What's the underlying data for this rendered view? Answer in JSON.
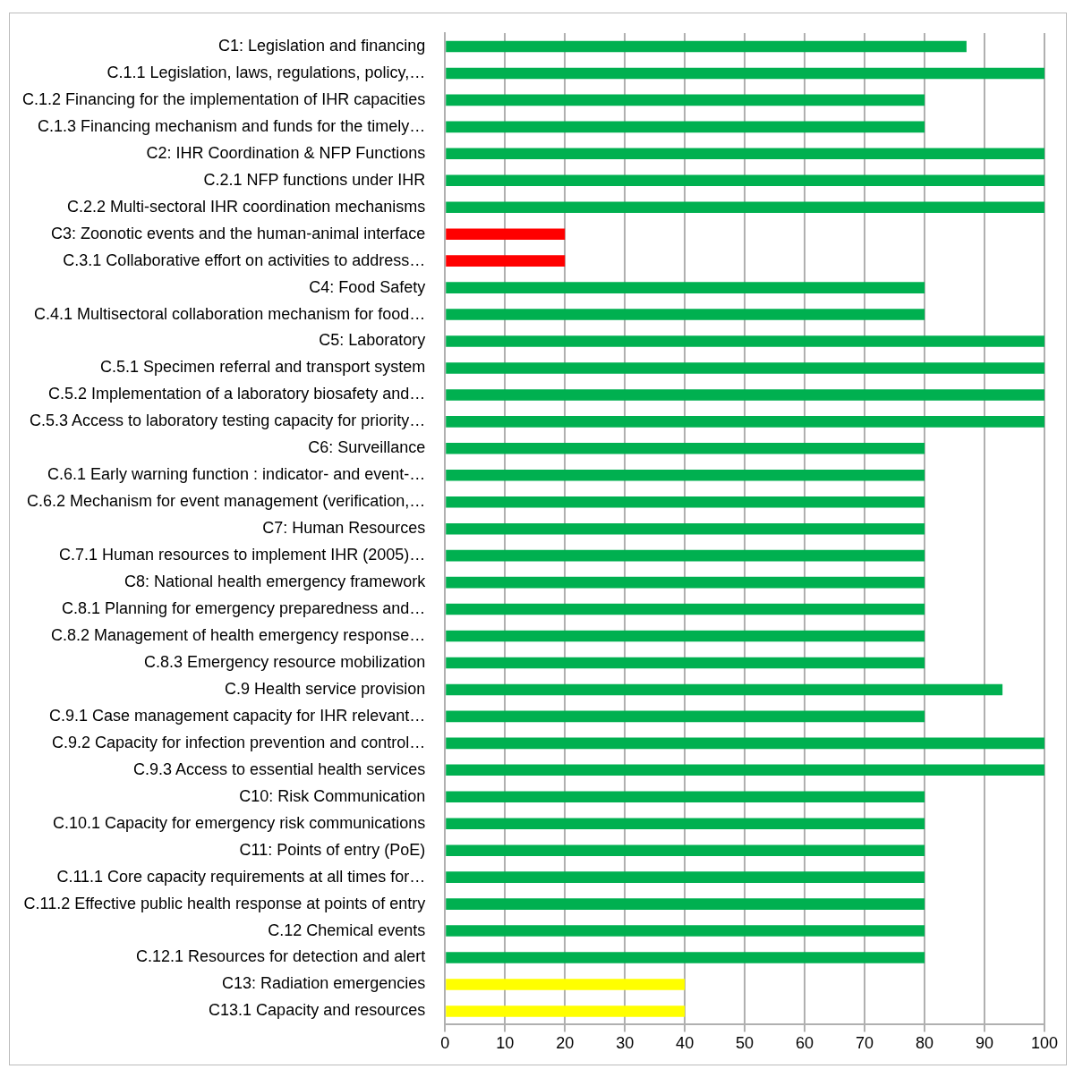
{
  "chart_data": {
    "type": "bar",
    "orientation": "horizontal",
    "categories": [
      "C1: Legislation and financing",
      "C.1.1 Legislation, laws, regulations, policy,…",
      "C.1.2 Financing for the implementation of IHR capacities",
      "C.1.3 Financing mechanism and funds for the timely…",
      "C2: IHR Coordination & NFP Functions",
      "C.2.1 NFP functions under IHR",
      "C.2.2 Multi-sectoral IHR coordination mechanisms",
      "C3: Zoonotic events and the human-animal interface",
      "C.3.1 Collaborative effort on activities to address…",
      "C4: Food Safety",
      "C.4.1 Multisectoral collaboration mechanism for food…",
      "C5: Laboratory",
      "C.5.1 Specimen referral and transport system",
      "C.5.2 Implementation of a laboratory biosafety and…",
      "C.5.3 Access to laboratory testing capacity for priority…",
      "C6: Surveillance",
      "C.6.1 Early warning function : indicator- and event-…",
      "C.6.2 Mechanism for event management (verification,…",
      "C7: Human Resources",
      "C.7.1 Human resources to implement IHR (2005)…",
      "C8: National health emergency framework",
      "C.8.1 Planning for emergency preparedness and…",
      "C.8.2 Management of health emergency response…",
      "C.8.3 Emergency resource mobilization",
      "C.9 Health service provision",
      "C.9.1 Case management capacity for IHR relevant…",
      "C.9.2 Capacity for infection prevention and control…",
      "C.9.3 Access to essential health services",
      "C10: Risk Communication",
      "C.10.1 Capacity for emergency risk communications",
      "C11: Points of entry (PoE)",
      "C.11.1 Core capacity requirements at all times for…",
      "C.11.2 Effective public health response at points of entry",
      "C.12 Chemical events",
      "C.12.1 Resources for detection and alert",
      "C13: Radiation emergencies",
      "C13.1 Capacity and resources"
    ],
    "values": [
      87,
      100,
      80,
      80,
      100,
      100,
      100,
      20,
      20,
      80,
      80,
      100,
      100,
      100,
      100,
      80,
      80,
      80,
      80,
      80,
      80,
      80,
      80,
      80,
      93,
      80,
      100,
      100,
      80,
      80,
      80,
      80,
      80,
      80,
      80,
      40,
      40
    ],
    "colors": [
      "#00b050",
      "#00b050",
      "#00b050",
      "#00b050",
      "#00b050",
      "#00b050",
      "#00b050",
      "#ff0000",
      "#ff0000",
      "#00b050",
      "#00b050",
      "#00b050",
      "#00b050",
      "#00b050",
      "#00b050",
      "#00b050",
      "#00b050",
      "#00b050",
      "#00b050",
      "#00b050",
      "#00b050",
      "#00b050",
      "#00b050",
      "#00b050",
      "#00b050",
      "#00b050",
      "#00b050",
      "#00b050",
      "#00b050",
      "#00b050",
      "#00b050",
      "#00b050",
      "#00b050",
      "#00b050",
      "#00b050",
      "#ffff00",
      "#ffff00"
    ],
    "xlim": [
      0,
      100
    ],
    "xticks": [
      0,
      10,
      20,
      30,
      40,
      50,
      60,
      70,
      80,
      90,
      100
    ],
    "grid": "x"
  }
}
